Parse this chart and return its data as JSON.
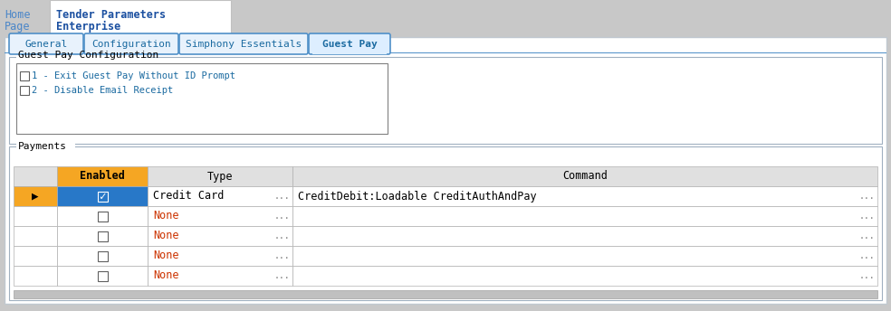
{
  "bg_color": "#c8c8c8",
  "panel_bg": "#ffffff",
  "breadcrumb_home": "Home",
  "breadcrumb_page": "Page",
  "breadcrumb_title1": "Tender Parameters",
  "breadcrumb_title2": "Enterprise",
  "breadcrumb_link_color": "#4a86c8",
  "breadcrumb_title_color": "#1a4fa0",
  "tabs": [
    "General",
    "Configuration",
    "Simphony Essentials",
    "Guest Pay"
  ],
  "active_tab": "Guest Pay",
  "tab_text_color": "#1a6aa0",
  "tab_bg": "#e8f2fc",
  "active_tab_bg": "#ddeeff",
  "tab_border_color": "#5090c8",
  "blue_line_color": "#5090c8",
  "section1_title": "Guest Pay Configuration",
  "section1_border": "#a0b0c0",
  "checkboxes": [
    "1 - Exit Guest Pay Without ID Prompt",
    "2 - Disable Email Receipt"
  ],
  "checkbox_text_color": "#1a6aa0",
  "section2_title": "Payments",
  "section2_border": "#a0b0c0",
  "table_arrow_col_bg": "#ffffff",
  "table_header_orange_bg": "#f5a623",
  "table_header_gray_bg": "#e0e0e0",
  "table_header_text_color": "#000000",
  "table_selected_bg": "#2878c8",
  "table_arrow_selected_bg": "#f5a623",
  "table_white_bg": "#ffffff",
  "table_border_color": "#b0b0b0",
  "table_type_color_selected": "#000000",
  "table_type_color": "#cc3300",
  "table_command_color": "#000000",
  "dots_color": "#808080",
  "table_rows": [
    {
      "enabled": true,
      "type": "Credit Card",
      "command": "CreditDebit:Loadable CreditAuthAndPay",
      "selected": true
    },
    {
      "enabled": false,
      "type": "None",
      "command": "",
      "selected": false
    },
    {
      "enabled": false,
      "type": "None",
      "command": "",
      "selected": false
    },
    {
      "enabled": false,
      "type": "None",
      "command": "",
      "selected": false
    },
    {
      "enabled": false,
      "type": "None",
      "command": "",
      "selected": false
    }
  ],
  "scrollbar_bg": "#c0c0c0",
  "outer_bg": "#c8c8c8"
}
